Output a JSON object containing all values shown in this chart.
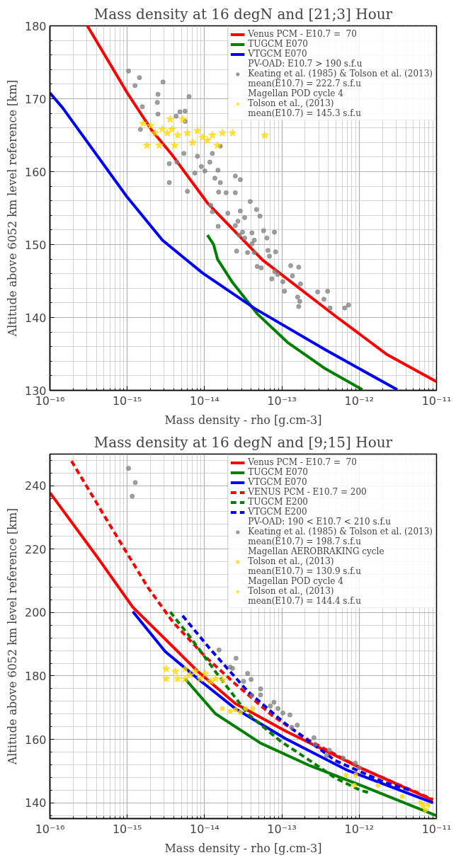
{
  "chart_data": [
    {
      "type": "line",
      "title": "Mass density at 16 degN and [21;3] Hour",
      "xlabel": "Mass density - rho [g.cm-3]",
      "ylabel": "Altitude above 6052 km level reference [km]",
      "log": "x",
      "grid": true,
      "legend": "top right",
      "xlim": [
        1e-16,
        1e-11
      ],
      "xticks": [
        {
          "value": 1e-16,
          "label": "10⁻¹⁶"
        },
        {
          "value": 1e-15,
          "label": "10⁻¹⁵"
        },
        {
          "value": 1e-14,
          "label": "10⁻¹⁴"
        },
        {
          "value": 1e-13,
          "label": "10⁻¹³"
        },
        {
          "value": 1e-12,
          "label": "10⁻¹²"
        },
        {
          "value": 1e-11,
          "label": "10⁻¹¹"
        }
      ],
      "ylim": [
        130,
        180
      ],
      "yticks": [
        130,
        140,
        150,
        160,
        170,
        180
      ],
      "series": [
        {
          "name": "Venus PCM - E10.7 =  70",
          "line_style": "solid",
          "color": "#ff0000",
          "x": [
            3.05e-16,
            1e-15,
            2.1e-15,
            3.8e-15,
            1.09e-14,
            5.6e-14,
            5.2e-13,
            2.3e-12,
            1e-11
          ],
          "values": [
            180,
            170.8,
            165.6,
            162.3,
            155.7,
            147.9,
            140,
            134.9,
            131.2
          ]
        },
        {
          "name": "TUGCM E070",
          "line_style": "solid",
          "color": "#008000",
          "x": [
            1.09e-14,
            1.31e-14,
            1.47e-14,
            2.3e-14,
            4.8e-14,
            1.18e-13,
            3.6e-13,
            1.1e-12
          ],
          "values": [
            151.3,
            150,
            148,
            144.8,
            140.5,
            136.6,
            133,
            130.1
          ]
        },
        {
          "name": "VTGCM E070",
          "line_style": "solid",
          "color": "#0000ff",
          "x": [
            1e-16,
            1.45e-16,
            1e-15,
            2.85e-15,
            9.4e-15,
            4.5e-14,
            3.6e-13,
            3.1e-12
          ],
          "values": [
            170.8,
            168.8,
            156.5,
            150.6,
            146.1,
            141.2,
            135.6,
            130.1
          ]
        },
        {
          "name": "PV-OAD: E10.7 > 190 s.f.u\nKeating et al. (1985) & Tolson et al. (2013)\nmean(E10.7) = 222.7 s.f.u",
          "type": "scatter",
          "marker": "circle",
          "color": "#808080",
          "x": [
            1.04e-15,
            1.44e-15,
            1.26e-15,
            2.9e-15,
            2.5e-15,
            2.45e-15,
            6.3e-15,
            1.57e-15,
            2.5e-15,
            4.8e-15,
            5.6e-15,
            4.3e-15,
            1.48e-15,
            5.6e-15,
            1.6e-14,
            5.4e-15,
            8.1e-15,
            1.26e-14,
            3.5e-15,
            4.4e-15,
            9.1e-15,
            1.17e-14,
            1.01e-14,
            1.49e-14,
            7.5e-15,
            1.36e-14,
            2.5e-14,
            2.9e-14,
            3.5e-15,
            1.6e-14,
            6e-15,
            1.52e-14,
            1.9e-14,
            2.5e-14,
            3.9e-14,
            1.2e-14,
            1.26e-14,
            2e-14,
            2.9e-14,
            4.7e-14,
            5.2e-14,
            3.3e-14,
            1.5e-14,
            2.7e-14,
            2.5e-14,
            3.1e-14,
            4.1e-14,
            5.8e-14,
            8e-14,
            2.8e-14,
            6.4e-14,
            3.3e-14,
            4.4e-14,
            4.1e-14,
            2.6e-14,
            3.6e-14,
            4.4e-14,
            6.6e-14,
            8.3e-14,
            6.9e-14,
            4.8e-14,
            5.4e-14,
            1.3e-13,
            1.65e-13,
            8.1e-14,
            8.8e-14,
            1.37e-13,
            7.4e-14,
            1.03e-13,
            1.74e-13,
            1.08e-13,
            2.9e-13,
            3.9e-13,
            1.6e-13,
            3.5e-13,
            1.7e-13,
            1.65e-13,
            4.2e-13,
            6.5e-13,
            7.3e-13
          ],
          "values": [
            173.8,
            172.9,
            171.8,
            172.3,
            170.6,
            169.5,
            170.3,
            168.9,
            167.9,
            168.2,
            168.3,
            167.6,
            165.8,
            166.9,
            163.5,
            162.5,
            162.1,
            162.5,
            161.1,
            161.3,
            160.7,
            161.3,
            160.1,
            160.2,
            159.8,
            159.1,
            159.4,
            158.9,
            158.5,
            158.5,
            157.3,
            157.2,
            157.1,
            157.1,
            155.9,
            155.4,
            154.5,
            154.3,
            154.6,
            154.8,
            153.9,
            153.7,
            152.5,
            153.2,
            152.6,
            151.7,
            151.6,
            151.9,
            151.7,
            151.3,
            150.9,
            150.9,
            150.6,
            150.1,
            149.1,
            148.9,
            148.9,
            149.2,
            149,
            148.4,
            147,
            146.8,
            147.1,
            146.9,
            146.3,
            145.9,
            145.7,
            145.3,
            144.9,
            144.6,
            143.6,
            143.5,
            143.6,
            142.8,
            142.5,
            142.2,
            141.5,
            141.3,
            141.3,
            141.7
          ]
        },
        {
          "name": "Magellan POD cycle 4\nTolson et al., (2013)\nmean(E10.7) = 145.3 s.f.u",
          "type": "scatter",
          "marker": "star",
          "color": "#ffd700",
          "x": [
            1.6e-15,
            2e-15,
            3.6e-15,
            5.2e-15,
            1.8e-15,
            2.6e-15,
            2.3e-15,
            3.3e-15,
            4.5e-15,
            6e-15,
            8.1e-15,
            9.4e-15,
            1.26e-14,
            1.7e-14,
            2.3e-14,
            4.1e-15,
            7e-15,
            1.47e-14,
            1.09e-14,
            6e-14,
            2.85e-15,
            3.8e-15
          ],
          "values": [
            166.6,
            166.3,
            167.2,
            167.2,
            163.6,
            163.6,
            165.3,
            165.3,
            165,
            165.3,
            165.6,
            164.7,
            165,
            165.3,
            165.3,
            163.6,
            164,
            163.6,
            164.3,
            165,
            165.8,
            165.8
          ]
        }
      ]
    },
    {
      "type": "line",
      "title": "Mass density at 16 degN and [9;15] Hour",
      "xlabel": "Mass density - rho [g.cm-3]",
      "ylabel": "Altitude above 6052 km level reference [km]",
      "log": "x",
      "grid": true,
      "legend": "top right",
      "xlim": [
        1e-16,
        1e-11
      ],
      "xticks": [
        {
          "value": 1e-16,
          "label": "10⁻¹⁶"
        },
        {
          "value": 1e-15,
          "label": "10⁻¹⁵"
        },
        {
          "value": 1e-14,
          "label": "10⁻¹⁴"
        },
        {
          "value": 1e-13,
          "label": "10⁻¹³"
        },
        {
          "value": 1e-12,
          "label": "10⁻¹²"
        },
        {
          "value": 1e-11,
          "label": "10⁻¹¹"
        }
      ],
      "ylim": [
        135,
        250
      ],
      "yticks": [
        140,
        160,
        180,
        200,
        220,
        240
      ],
      "series": [
        {
          "name": "Venus PCM - E10.7 =  70",
          "line_style": "solid",
          "color": "#ff0000",
          "x": [
            1e-16,
            1.36e-16,
            4.15e-16,
            1.18e-15,
            3.9e-15,
            8.2e-15,
            2.5e-14,
            1.1e-13,
            1.04e-12,
            9e-12
          ],
          "values": [
            237.8,
            233.4,
            217.3,
            201.7,
            189.2,
            181.4,
            171.3,
            162.7,
            151,
            140.8
          ]
        },
        {
          "name": "TUGCM E070",
          "line_style": "solid",
          "color": "#008000",
          "x": [
            5.6e-15,
            1.38e-14,
            5.3e-14,
            2.3e-13,
            1.04e-12,
            1e-11
          ],
          "values": [
            179.1,
            168.1,
            158.8,
            151.7,
            145.5,
            135.9
          ]
        },
        {
          "name": "VTGCM E070",
          "line_style": "solid",
          "color": "#0000ff",
          "x": [
            1.18e-15,
            3.1e-15,
            8.2e-15,
            2.5e-14,
            1.1e-13,
            7.1e-13,
            9e-12
          ],
          "values": [
            200.3,
            187.7,
            179.1,
            169.7,
            160.3,
            150.2,
            140
          ]
        },
        {
          "name": "VENUS PCM - E10.7 = 200",
          "line_style": "dashed",
          "color": "#ff0000",
          "x": [
            1.9e-16,
            6e-16,
            1.84e-15,
            3.9e-15,
            1.02e-14,
            2.5e-14,
            7.6e-14,
            2.3e-13,
            1.04e-12,
            9e-12
          ],
          "values": [
            247.8,
            227.5,
            208,
            197,
            186.1,
            177.5,
            167.4,
            159.5,
            151,
            141
          ]
        },
        {
          "name": "TUGCM E200",
          "line_style": "dashed",
          "color": "#008000",
          "x": [
            3.6e-15,
            6.5e-15,
            1.38e-14,
            3.6e-14,
            9.5e-14,
            2.3e-13,
            4.9e-13,
            1.04e-12,
            1.37e-12
          ],
          "values": [
            200.2,
            192.3,
            181.4,
            168.1,
            159.5,
            153.3,
            147.8,
            143.9,
            143.1
          ]
        },
        {
          "name": "VTGCM E200",
          "line_style": "dashed",
          "color": "#0000ff",
          "x": [
            5.2e-15,
            1.19e-14,
            3.6e-14,
            1.1e-13,
            4.9e-13,
            2.2e-12,
            4.6e-12
          ],
          "values": [
            199,
            188.4,
            175.2,
            165,
            153.3,
            146.3,
            143.9
          ]
        },
        {
          "name": "PV-OAD: 190 < E10.7 < 210 s.f.u\nKeating et al. (1985) & Tolson et al. (2013)\nmean(E10.7) = 198.7 s.f.u",
          "type": "scatter",
          "marker": "circle",
          "color": "#808080",
          "x": [
            1.04e-15,
            1.27e-15,
            1.16e-15,
            1.54e-14,
            2.55e-14,
            2.15e-14,
            2.3e-14,
            3.6e-14,
            3.2e-14,
            4e-14,
            5.3e-14,
            5.3e-14,
            4.1e-14,
            7.9e-14,
            7.1e-14,
            8.9e-14,
            1.03e-13,
            1.27e-13,
            1.58e-13,
            1.34e-13,
            2.6e-13,
            2.7e-13,
            4.1e-13,
            3.8e-13,
            6.2e-13,
            8.9e-13,
            1e-12
          ],
          "values": [
            245.5,
            241,
            236.7,
            188.2,
            185.6,
            182.8,
            182.4,
            180.8,
            178.3,
            178.9,
            175.9,
            174,
            173.8,
            171.7,
            170.5,
            169.7,
            168.3,
            167.7,
            164.5,
            163.8,
            160.5,
            158.4,
            156.6,
            154.9,
            154.1,
            152.5,
            151
          ]
        },
        {
          "name": "Magellan AEROBRAKING cycle\nTolson et al., (2013)\nmean(E10.7) = 130.9 s.f.u",
          "type": "scatter",
          "marker": "circle",
          "color": "#ffd700",
          "x": [
            1.7e-14,
            2.5e-14,
            3.4e-14,
            4.2e-14,
            2.9e-14,
            2.15e-14,
            6.7e-13,
            9e-13,
            8.6e-13,
            1.75e-12,
            3.6e-12,
            6.2e-12,
            7.2e-12,
            7.8e-12,
            6.7e-12
          ],
          "values": [
            169.7,
            169.3,
            169.7,
            169.7,
            168.5,
            168.9,
            148.6,
            148.8,
            145.5,
            145.5,
            142,
            140,
            137.7,
            139.3,
            139
          ]
        },
        {
          "name": "Magellan POD cycle 4\nTolson et al., (2013)\nmean(E10.7) = 144.4 s.f.u",
          "type": "scatter",
          "marker": "star",
          "color": "#ffd700",
          "x": [
            3.2e-15,
            3.2e-15,
            4.2e-15,
            4.5e-15,
            5.6e-15,
            5.6e-15,
            7.6e-15,
            8.8e-15,
            1.02e-14,
            1.38e-14,
            1.72e-14,
            6.5e-15,
            1.2e-14
          ],
          "values": [
            182.2,
            179.1,
            181.4,
            179.1,
            182.2,
            179.1,
            181.4,
            179.1,
            180.7,
            179.1,
            178.7,
            180.3,
            178.3
          ]
        }
      ]
    }
  ]
}
